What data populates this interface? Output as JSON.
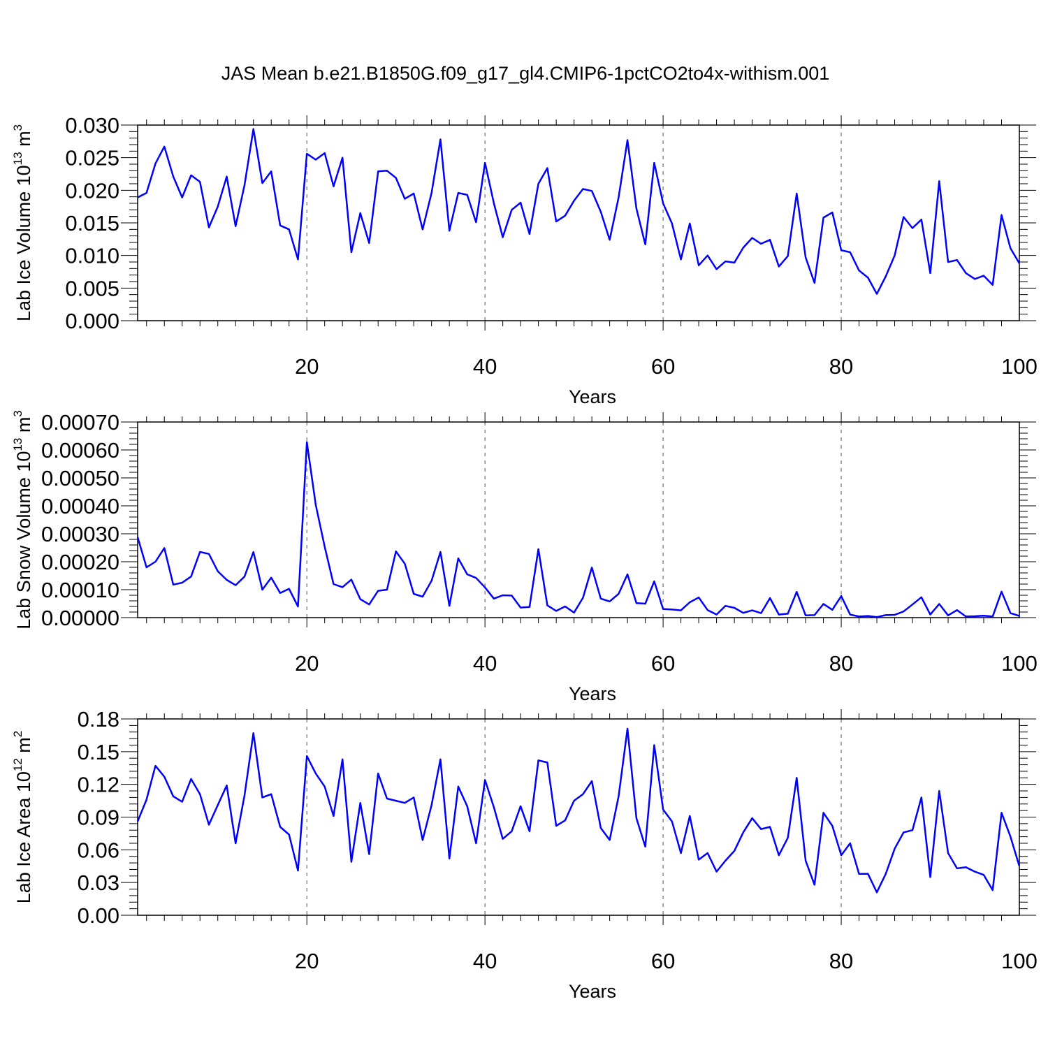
{
  "title": "JAS Mean b.e21.B1850G.f09_g17_gl4.CMIP6-1pctCO2to4x-withism.001",
  "colors": {
    "line": "#0000ff",
    "axes": "#000000",
    "grid": "#555555"
  },
  "chart_data": [
    {
      "type": "line",
      "xlabel": "Years",
      "ylabel": {
        "text": "Lab Ice Volume 10",
        "sup1": "13",
        "unit": " m",
        "sup2": "3"
      },
      "xlim": [
        1,
        100
      ],
      "ylim": [
        0,
        0.03
      ],
      "xticks": [
        20,
        40,
        60,
        80,
        100
      ],
      "yticks": [
        "0.000",
        "0.005",
        "0.010",
        "0.015",
        "0.020",
        "0.025",
        "0.030"
      ],
      "grid": "vertical dashed at major x ticks",
      "x": [
        1,
        2,
        3,
        4,
        5,
        6,
        7,
        8,
        9,
        10,
        11,
        12,
        13,
        14,
        15,
        16,
        17,
        18,
        19,
        20,
        21,
        22,
        23,
        24,
        25,
        26,
        27,
        28,
        29,
        30,
        31,
        32,
        33,
        34,
        35,
        36,
        37,
        38,
        39,
        40,
        41,
        42,
        43,
        44,
        45,
        46,
        47,
        48,
        49,
        50,
        51,
        52,
        53,
        54,
        55,
        56,
        57,
        58,
        59,
        60,
        61,
        62,
        63,
        64,
        65,
        66,
        67,
        68,
        69,
        70,
        71,
        72,
        73,
        74,
        75,
        76,
        77,
        78,
        79,
        80,
        81,
        82,
        83,
        84,
        85,
        86,
        87,
        88,
        89,
        90,
        91,
        92,
        93,
        94,
        95,
        96,
        97,
        98,
        99,
        100
      ],
      "series": [
        {
          "values": [
            0.0189,
            0.0196,
            0.0241,
            0.0267,
            0.0221,
            0.0189,
            0.0223,
            0.0213,
            0.0143,
            0.0175,
            0.0221,
            0.0145,
            0.0208,
            0.0294,
            0.0211,
            0.0229,
            0.0146,
            0.014,
            0.0094,
            0.0256,
            0.0247,
            0.0257,
            0.0206,
            0.025,
            0.0105,
            0.0165,
            0.0119,
            0.0229,
            0.023,
            0.0219,
            0.0187,
            0.0195,
            0.014,
            0.0196,
            0.0278,
            0.0138,
            0.0196,
            0.0193,
            0.0151,
            0.0242,
            0.018,
            0.0128,
            0.017,
            0.0181,
            0.0133,
            0.021,
            0.0234,
            0.0152,
            0.0161,
            0.0184,
            0.0202,
            0.0199,
            0.0167,
            0.0124,
            0.0189,
            0.0277,
            0.0172,
            0.0117,
            0.0242,
            0.018,
            0.0149,
            0.0094,
            0.0149,
            0.0085,
            0.01,
            0.0079,
            0.0091,
            0.0089,
            0.0112,
            0.0127,
            0.0118,
            0.0124,
            0.0083,
            0.0099,
            0.0195,
            0.0097,
            0.0058,
            0.0158,
            0.0166,
            0.0108,
            0.0105,
            0.0077,
            0.0066,
            0.0041,
            0.0068,
            0.01,
            0.0159,
            0.0142,
            0.0155,
            0.0073,
            0.0214,
            0.009,
            0.0093,
            0.0073,
            0.0064,
            0.0069,
            0.0055,
            0.0162,
            0.0111,
            0.0088
          ]
        }
      ]
    },
    {
      "type": "line",
      "xlabel": "Years",
      "ylabel": {
        "text": "Lab Snow Volume 10",
        "sup1": "13",
        "unit": " m",
        "sup2": "3"
      },
      "xlim": [
        1,
        100
      ],
      "ylim": [
        0,
        0.0007
      ],
      "xticks": [
        20,
        40,
        60,
        80,
        100
      ],
      "yticks": [
        "0.00000",
        "0.00010",
        "0.00020",
        "0.00030",
        "0.00040",
        "0.00050",
        "0.00060",
        "0.00070"
      ],
      "grid": "vertical dashed at major x ticks",
      "x": [
        1,
        2,
        3,
        4,
        5,
        6,
        7,
        8,
        9,
        10,
        11,
        12,
        13,
        14,
        15,
        16,
        17,
        18,
        19,
        20,
        21,
        22,
        23,
        24,
        25,
        26,
        27,
        28,
        29,
        30,
        31,
        32,
        33,
        34,
        35,
        36,
        37,
        38,
        39,
        40,
        41,
        42,
        43,
        44,
        45,
        46,
        47,
        48,
        49,
        50,
        51,
        52,
        53,
        54,
        55,
        56,
        57,
        58,
        59,
        60,
        61,
        62,
        63,
        64,
        65,
        66,
        67,
        68,
        69,
        70,
        71,
        72,
        73,
        74,
        75,
        76,
        77,
        78,
        79,
        80,
        81,
        82,
        83,
        84,
        85,
        86,
        87,
        88,
        89,
        90,
        91,
        92,
        93,
        94,
        95,
        96,
        97,
        98,
        99,
        100
      ],
      "series": [
        {
          "values": [
            0.000288,
            0.00018,
            0.0002,
            0.000249,
            0.000118,
            0.000125,
            0.000147,
            0.000235,
            0.000228,
            0.000166,
            0.000135,
            0.000116,
            0.000147,
            0.000235,
            0.0001,
            0.000143,
            8.8e-05,
            0.000103,
            4e-05,
            0.000628,
            0.000404,
            0.000254,
            0.00012,
            0.000109,
            0.000136,
            6.6e-05,
            4.7e-05,
            9.6e-05,
            0.0001,
            0.000237,
            0.000193,
            8.5e-05,
            7.5e-05,
            0.000132,
            0.000235,
            4.2e-05,
            0.000212,
            0.000155,
            0.000142,
            0.000108,
            6.8e-05,
            8e-05,
            7.9e-05,
            3.6e-05,
            3.8e-05,
            0.000245,
            4.4e-05,
            2.4e-05,
            4e-05,
            1.8e-05,
            7.1e-05,
            0.000179,
            6.8e-05,
            5.8e-05,
            8.5e-05,
            0.000155,
            5.2e-05,
            5e-05,
            0.00013,
            3.1e-05,
            2.9e-05,
            2.6e-05,
            5.5e-05,
            7.2e-05,
            2.7e-05,
            1.1e-05,
            4.2e-05,
            3.5e-05,
            1.7e-05,
            2.6e-05,
            1.6e-05,
            7e-05,
            1.1e-05,
            1.4e-05,
            9.2e-05,
            8e-06,
            9e-06,
            4.9e-05,
            2.8e-05,
            7.7e-05,
            1.1e-05,
            4e-06,
            6e-06,
            2e-06,
            9e-06,
            1e-05,
            2.2e-05,
            4.7e-05,
            7.3e-05,
            1.1e-05,
            4.9e-05,
            8e-06,
            2.7e-05,
            4e-06,
            5e-06,
            7e-06,
            4e-06,
            9.3e-05,
            1.6e-05,
            6e-06
          ]
        }
      ]
    },
    {
      "type": "line",
      "xlabel": "Years",
      "ylabel": {
        "text": "Lab Ice Area 10",
        "sup1": "12",
        "unit": " m",
        "sup2": "2"
      },
      "xlim": [
        1,
        100
      ],
      "ylim": [
        0,
        0.18
      ],
      "xticks": [
        20,
        40,
        60,
        80,
        100
      ],
      "yticks": [
        "0.00",
        "0.03",
        "0.06",
        "0.09",
        "0.12",
        "0.15",
        "0.18"
      ],
      "grid": "vertical dashed at major x ticks",
      "x": [
        1,
        2,
        3,
        4,
        5,
        6,
        7,
        8,
        9,
        10,
        11,
        12,
        13,
        14,
        15,
        16,
        17,
        18,
        19,
        20,
        21,
        22,
        23,
        24,
        25,
        26,
        27,
        28,
        29,
        30,
        31,
        32,
        33,
        34,
        35,
        36,
        37,
        38,
        39,
        40,
        41,
        42,
        43,
        44,
        45,
        46,
        47,
        48,
        49,
        50,
        51,
        52,
        53,
        54,
        55,
        56,
        57,
        58,
        59,
        60,
        61,
        62,
        63,
        64,
        65,
        66,
        67,
        68,
        69,
        70,
        71,
        72,
        73,
        74,
        75,
        76,
        77,
        78,
        79,
        80,
        81,
        82,
        83,
        84,
        85,
        86,
        87,
        88,
        89,
        90,
        91,
        92,
        93,
        94,
        95,
        96,
        97,
        98,
        99,
        100
      ],
      "series": [
        {
          "values": [
            0.086,
            0.106,
            0.137,
            0.127,
            0.109,
            0.104,
            0.125,
            0.111,
            0.083,
            0.101,
            0.119,
            0.066,
            0.11,
            0.167,
            0.108,
            0.111,
            0.081,
            0.074,
            0.041,
            0.146,
            0.13,
            0.118,
            0.091,
            0.143,
            0.049,
            0.103,
            0.056,
            0.13,
            0.107,
            0.105,
            0.103,
            0.108,
            0.069,
            0.101,
            0.143,
            0.052,
            0.118,
            0.1,
            0.066,
            0.124,
            0.099,
            0.07,
            0.077,
            0.1,
            0.077,
            0.142,
            0.14,
            0.082,
            0.087,
            0.105,
            0.111,
            0.123,
            0.08,
            0.069,
            0.109,
            0.171,
            0.089,
            0.063,
            0.156,
            0.097,
            0.086,
            0.057,
            0.091,
            0.051,
            0.057,
            0.04,
            0.05,
            0.059,
            0.076,
            0.089,
            0.079,
            0.081,
            0.055,
            0.071,
            0.126,
            0.05,
            0.028,
            0.094,
            0.082,
            0.055,
            0.066,
            0.038,
            0.038,
            0.021,
            0.038,
            0.061,
            0.076,
            0.078,
            0.108,
            0.035,
            0.114,
            0.057,
            0.043,
            0.044,
            0.04,
            0.037,
            0.023,
            0.094,
            0.072,
            0.045
          ]
        }
      ]
    }
  ]
}
